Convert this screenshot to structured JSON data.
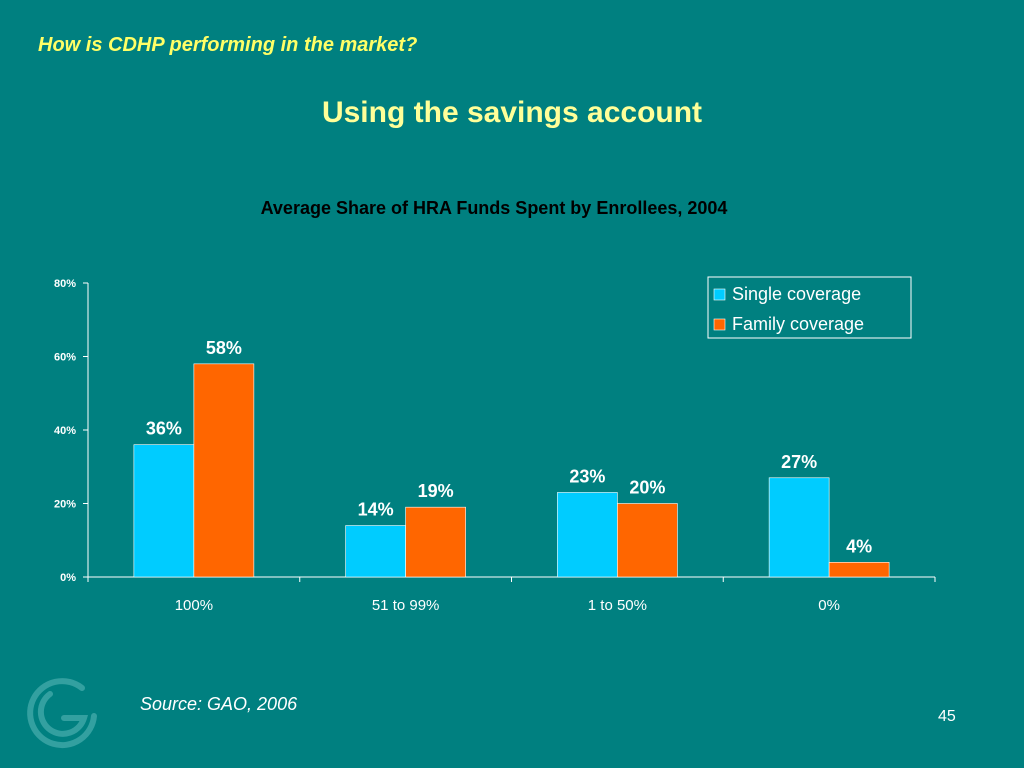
{
  "header": {
    "question": "How is CDHP performing in the market?",
    "title": "Using the savings account"
  },
  "footer": {
    "source": "Source: GAO, 2006",
    "page_number": "45"
  },
  "chart_data": {
    "type": "bar",
    "title": "Average Share of HRA Funds Spent by Enrollees, 2004",
    "categories": [
      "100%",
      "51 to 99%",
      "1 to 50%",
      "0%"
    ],
    "series": [
      {
        "name": "Single coverage",
        "values": [
          36,
          14,
          23,
          27
        ],
        "labels": [
          "36%",
          "14%",
          "23%",
          "27%"
        ],
        "color": "#00CCFF"
      },
      {
        "name": "Family coverage",
        "values": [
          58,
          19,
          20,
          4
        ],
        "labels": [
          "58%",
          "19%",
          "20%",
          "4%"
        ],
        "color": "#FF6600"
      }
    ],
    "ylim": [
      0,
      80
    ],
    "yticks": [
      0,
      20,
      40,
      60,
      80
    ],
    "ytick_labels": [
      "0%",
      "20%",
      "40%",
      "60%",
      "80%"
    ],
    "legend_position": "top-right",
    "grid": false
  },
  "colors": {
    "background": "#008080",
    "header_text": "#FFFF66",
    "title_text": "#FFFF99"
  }
}
